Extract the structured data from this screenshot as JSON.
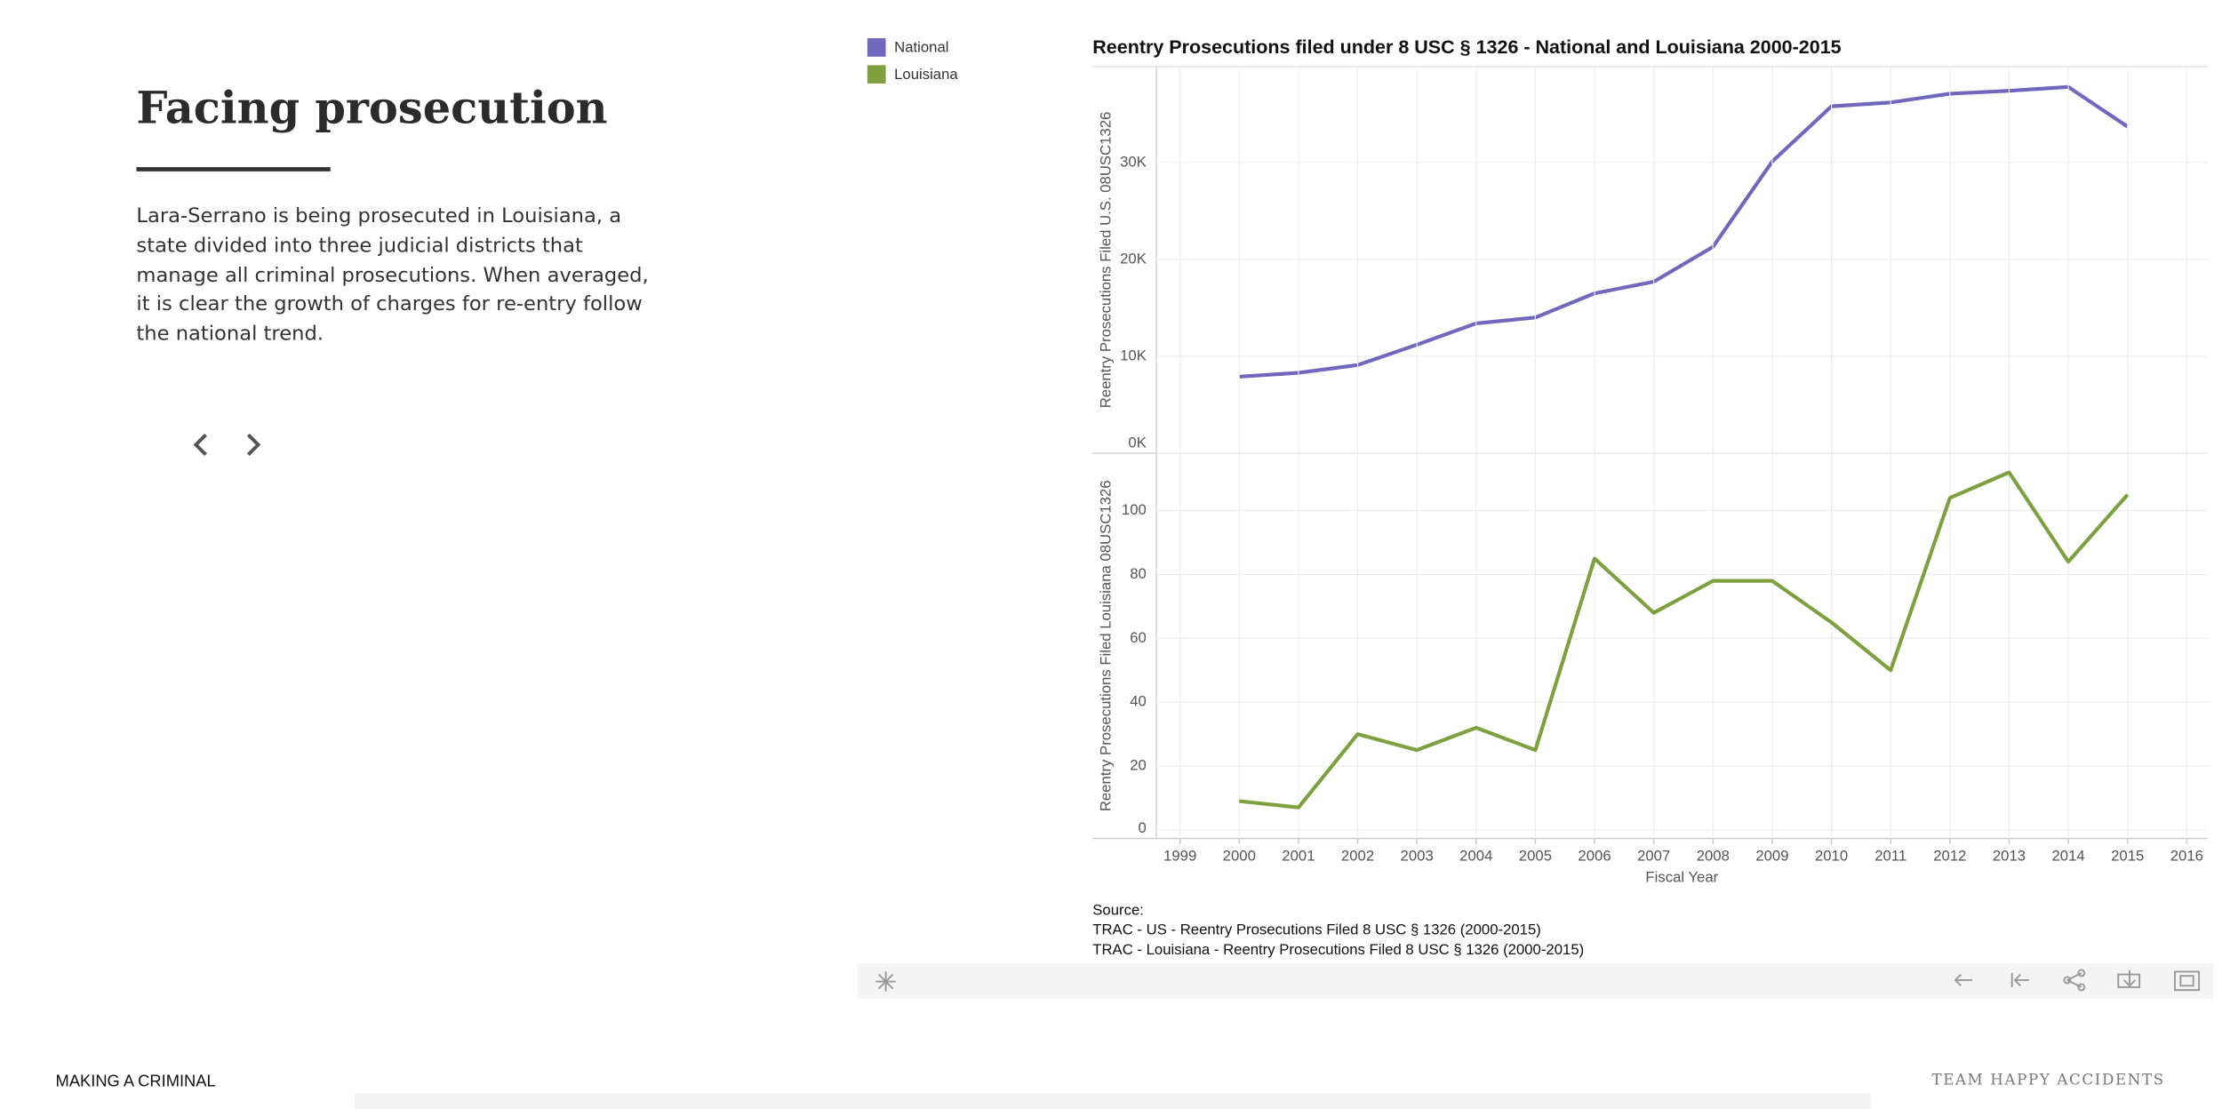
{
  "story": {
    "title": "Facing prosecution",
    "body": "Lara-Serrano is being prosecuted in Louisiana, a state divided into three judicial districts that manage all criminal prosecutions. When averaged, it is clear the growth of charges for re-entry follow the national trend."
  },
  "source": {
    "heading": "Source:",
    "lines": [
      "TRAC - US - Reentry Prosecutions Filed 8 USC § 1326 (2000-2015)",
      "TRAC - Louisiana - Reentry Prosecutions Filed 8 USC § 1326 (2000-2015)"
    ]
  },
  "footer": {
    "left": "MAKING A CRIMINAL",
    "right": "TEAM HAPPY ACCIDENTS"
  },
  "chart_data": [
    {
      "type": "line",
      "title": "Reentry Prosecutions filed under 8 USC § 1326 - National and Louisiana 2000-2015",
      "ylabel": "Reentry Prosecutions Filed U.S. 08USC1326",
      "x": [
        2000,
        2001,
        2002,
        2003,
        2004,
        2005,
        2006,
        2007,
        2008,
        2009,
        2010,
        2011,
        2012,
        2013,
        2014,
        2015
      ],
      "series": [
        {
          "name": "National",
          "color": "#7366bd",
          "values": [
            7900,
            8300,
            9100,
            11200,
            13400,
            14000,
            16500,
            17700,
            21300,
            30100,
            35800,
            36200,
            37100,
            37400,
            37800,
            33700
          ]
        }
      ],
      "xlim": [
        1998.6,
        2016.35
      ],
      "ylim": [
        0,
        39900
      ],
      "yticks": [
        {
          "value": 0,
          "label": "0K"
        },
        {
          "value": 10000,
          "label": "10K"
        },
        {
          "value": 20000,
          "label": "20K"
        },
        {
          "value": 30000,
          "label": "30K"
        }
      ],
      "grid": true
    },
    {
      "type": "line",
      "ylabel": "Reentry Prosecutions Filed  Louisiana 08USC1326",
      "xlabel": "Fiscal Year",
      "x": [
        2000,
        2001,
        2002,
        2003,
        2004,
        2005,
        2006,
        2007,
        2008,
        2009,
        2010,
        2011,
        2012,
        2013,
        2014,
        2015
      ],
      "series": [
        {
          "name": "Louisiana",
          "color": "#7ea03f",
          "values": [
            9,
            7,
            30,
            25,
            32,
            25,
            85,
            68,
            78,
            78,
            65,
            50,
            104,
            112,
            84,
            105
          ]
        }
      ],
      "xlim": [
        1998.6,
        2016.35
      ],
      "ylim": [
        -2.7,
        118
      ],
      "xticks": [
        1999,
        2000,
        2001,
        2002,
        2003,
        2004,
        2005,
        2006,
        2007,
        2008,
        2009,
        2010,
        2011,
        2012,
        2013,
        2014,
        2015,
        2016
      ],
      "yticks": [
        0,
        20,
        40,
        60,
        80,
        100
      ],
      "grid": true
    }
  ]
}
